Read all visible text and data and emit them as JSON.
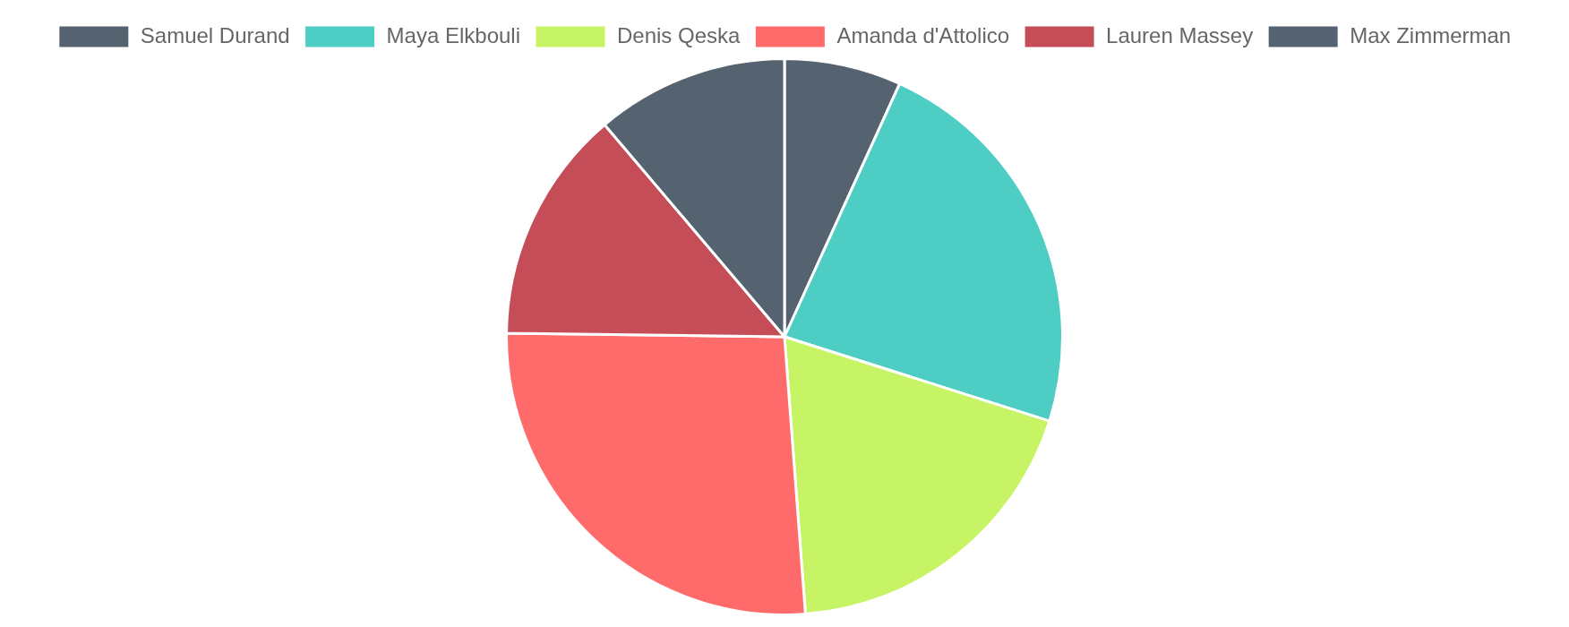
{
  "chart_data": {
    "type": "pie",
    "categories": [
      "Samuel Durand",
      "Maya Elkbouli",
      "Denis Qeska",
      "Amanda d'Attolico",
      "Lauren Massey",
      "Max Zimmerman"
    ],
    "values": [
      6.8,
      23.1,
      18.9,
      26.4,
      13.6,
      11.2
    ],
    "colors": [
      "#556270",
      "#4ecdc4",
      "#c7f464",
      "#ff6b6b",
      "#c44d58",
      "#556270"
    ],
    "legend": "top"
  }
}
